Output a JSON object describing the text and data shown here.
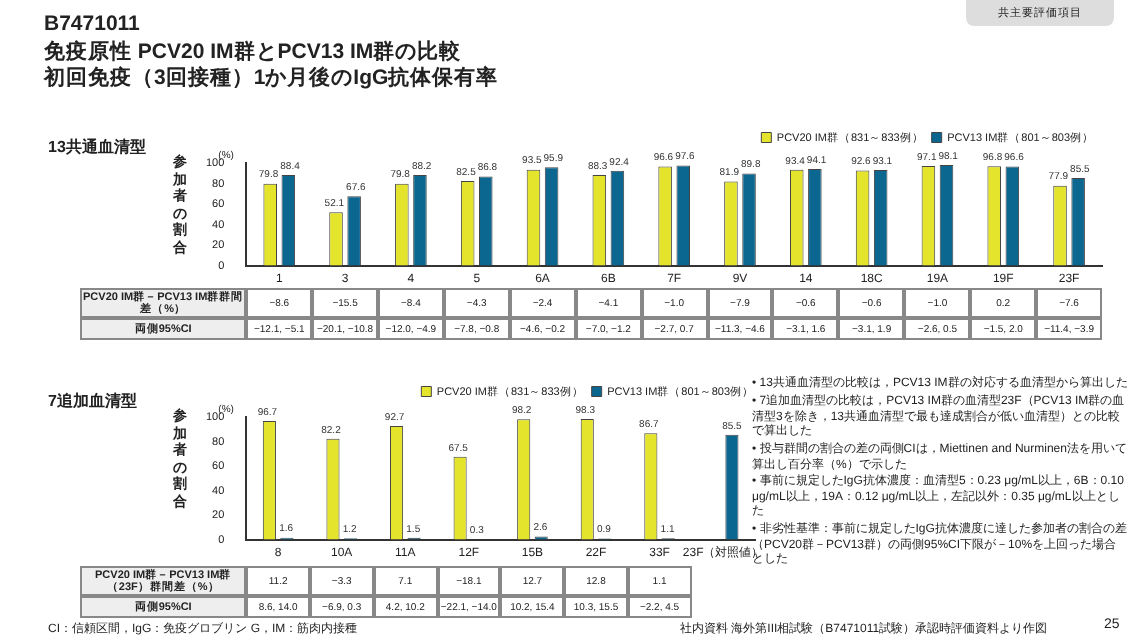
{
  "chart_data": [
    {
      "type": "bar",
      "title": "免疫原性 PCV20 IM群とPCV13 IM群の比較",
      "subtitle": "13共通血清型",
      "ylabel": "参加者の割合",
      "categories": [
        "1",
        "3",
        "4",
        "5",
        "6A",
        "6B",
        "7F",
        "9V",
        "14",
        "18C",
        "19A",
        "19F",
        "23F"
      ],
      "series": [
        {
          "name": "PCV20 IM群（831～833例）",
          "color": "#e4e42c",
          "values": [
            79.8,
            52.1,
            79.8,
            82.5,
            93.5,
            88.3,
            96.6,
            81.9,
            93.4,
            92.6,
            97.1,
            96.8,
            77.9
          ]
        },
        {
          "name": "PCV13 IM群（801～803例）",
          "color": "#0b6690",
          "values": [
            88.4,
            67.6,
            88.2,
            86.8,
            95.9,
            92.4,
            97.6,
            89.8,
            94.1,
            93.1,
            98.1,
            96.6,
            85.5
          ]
        }
      ],
      "ylim": [
        0,
        100
      ],
      "yticks": [
        0,
        20,
        40,
        60,
        80,
        100
      ],
      "grid": false,
      "legend": "top right",
      "data_labels": true,
      "annotations": [
        "(%)",
        "PCV20 IM群－PCV13 IM群群間差（%）",
        "両側95%CI",
        "B7471011",
        "共主要評価項目",
        "初回免疫（3回接種）1か月後のIgG抗体保有率",
        "−8.6",
        "−12.1, −5.1",
        "−15.5",
        "−20.1, −10.8",
        "−8.4",
        "−12.0, −4.9",
        "−4.3",
        "−7.8, −0.8",
        "−2.4",
        "−4.6, −0.2",
        "−4.1",
        "−7.0, −1.2",
        "−1.0",
        "−2.7, 0.7",
        "−7.9",
        "−11.3, −4.6",
        "−0.6",
        "−3.1, 1.6",
        "−0.6",
        "−3.1, 1.9",
        "−1.0",
        "−2.6, 0.5",
        "0.2",
        "−1.5, 2.0",
        "−7.6",
        "−11.4, −3.9"
      ]
    },
    {
      "type": "bar",
      "subtitle": "7追加血清型",
      "ylabel": "参加者の割合",
      "categories": [
        "8",
        "10A",
        "11A",
        "12F",
        "15B",
        "22F",
        "33F",
        "23F（対照値）"
      ],
      "series": [
        {
          "name": "PCV20 IM群（831～833例）",
          "color": "#e4e42c",
          "values": [
            96.7,
            82.2,
            92.7,
            67.5,
            98.2,
            98.3,
            86.7,
            null
          ]
        },
        {
          "name": "PCV13 IM群（801～803例）",
          "color": "#0b6690",
          "values": [
            1.6,
            1.2,
            1.5,
            0.3,
            2.6,
            0.9,
            1.1,
            85.5
          ]
        }
      ],
      "ylim": [
        0,
        100
      ],
      "yticks": [
        0,
        20,
        40,
        60,
        80,
        100
      ],
      "grid": false,
      "legend": "top right",
      "data_labels": true,
      "annotations": [
        "(%)",
        "PCV20 IM群－PCV13 IM群（23F）群間差（%）",
        "両側95%CI",
        "• 13共通血清型の比較は，PCV13 IM群の対応する血清型から算出した",
        "• 7追加血清型の比較は，PCV13 IM群の血清型23F（PCV13 IM群の血清型3を除き，13共通血清型で最も達成割合が低い血清型）との比較で算出した",
        "• 投与群間の割合の差の両側CIは，Miettinen and Nurminen法を用いて算出し百分率（%）で示した",
        "• 事前に規定したIgG抗体濃度：血清型5：0.23 μg/mL以上，6B：0.10 μg/mL以上，19A：0.12 μg/mL以上，左記以外：0.35 μg/mL以上とした",
        "• 非劣性基準：事前に規定したIgG抗体濃度に達した参加者の割合の差（PCV20群－PCV13群）の両側95%CI下限が－10%を上回った場合とした",
        "CI：信頼区間，IgG：免疫グロブリン G，IM：筋肉内接種",
        "社内資料 海外第III相試験（B7471011試験）承認時評価資料より作図",
        "25",
        "11.2",
        "8.6, 14.0",
        "−3.3",
        "−6.9, 0.3",
        "7.1",
        "4.2, 10.2",
        "−18.1",
        "−22.1, −14.0",
        "12.7",
        "10.2, 15.4",
        "12.8",
        "10.3, 15.5",
        "1.1",
        "−2.2, 4.5"
      ]
    }
  ]
}
